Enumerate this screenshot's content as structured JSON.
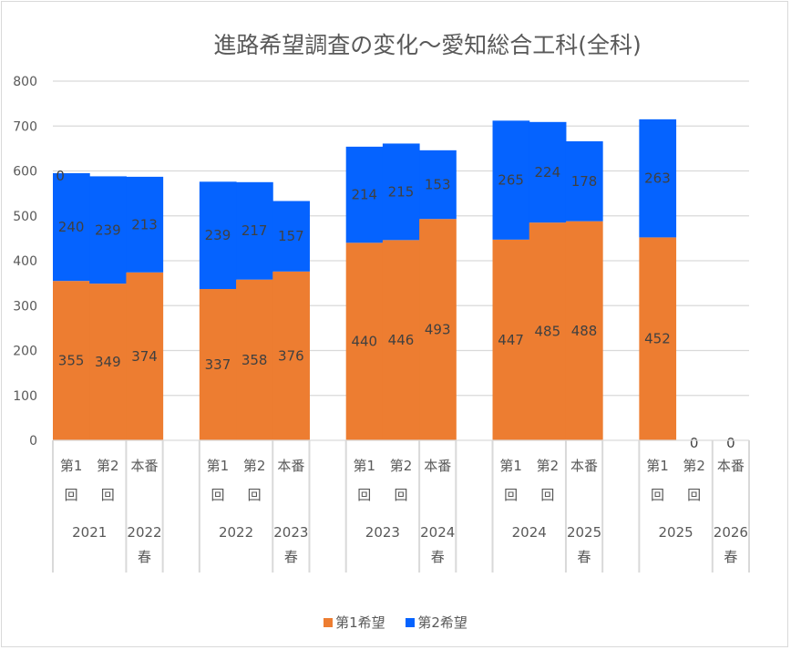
{
  "chart_data": {
    "type": "bar",
    "stacked": true,
    "title": "進路希望調査の変化～愛知総合工科(全科)",
    "xlabel": "",
    "ylabel": "",
    "ylim": [
      0,
      800
    ],
    "yticks": [
      0,
      100,
      200,
      300,
      400,
      500,
      600,
      700,
      800
    ],
    "grid": true,
    "legend_position": "bottom",
    "groups": [
      {
        "year_label": "2021",
        "spring_label": [
          "2022",
          "春"
        ]
      },
      {
        "year_label": "2022",
        "spring_label": [
          "2023",
          "春"
        ]
      },
      {
        "year_label": "2023",
        "spring_label": [
          "2024",
          "春"
        ]
      },
      {
        "year_label": "2024",
        "spring_label": [
          "2025",
          "春"
        ]
      },
      {
        "year_label": "2025",
        "spring_label": [
          "2026",
          "春"
        ]
      }
    ],
    "sub_categories": [
      [
        "第1",
        "回"
      ],
      [
        "第2",
        "回"
      ],
      [
        "本番"
      ]
    ],
    "series": [
      {
        "name": "第1希望",
        "color": "#ED7D31",
        "values": [
          355,
          349,
          374,
          337,
          358,
          376,
          440,
          446,
          493,
          447,
          485,
          488,
          452,
          0,
          0
        ]
      },
      {
        "name": "第2希望",
        "color": "#0563FF",
        "values": [
          240,
          239,
          213,
          239,
          217,
          157,
          214,
          215,
          153,
          265,
          224,
          178,
          263,
          0,
          0
        ]
      }
    ],
    "extra_labels": [
      {
        "index": 0,
        "text": "0"
      },
      {
        "index": 13,
        "text": "0"
      },
      {
        "index": 14,
        "text": "0"
      }
    ]
  }
}
